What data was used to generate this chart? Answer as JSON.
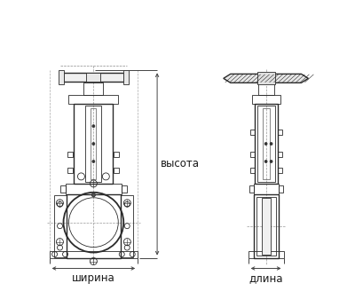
{
  "bg_color": "#ffffff",
  "line_color": "#2a2a2a",
  "dim_color": "#444444",
  "label_color": "#1a1a1a",
  "label_font_size": 8.5,
  "fig_width": 4.0,
  "fig_height": 3.46,
  "dpi": 100,
  "labels": {
    "width": "ширина",
    "depth": "длина",
    "height": "высота"
  }
}
